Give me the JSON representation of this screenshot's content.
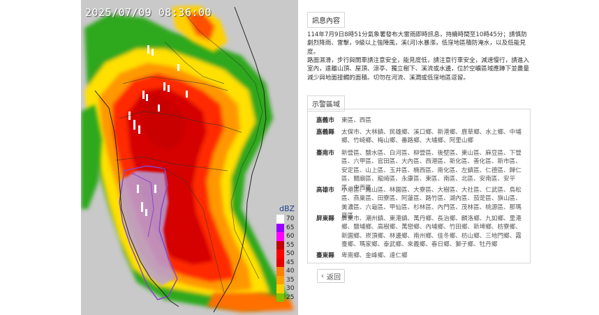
{
  "map": {
    "timestamp": "2025/07/09 08:36:00",
    "legend_title": "dBZ",
    "legend": [
      {
        "label": "70",
        "color": "#ffffff"
      },
      {
        "label": "65",
        "color": "#9900ff"
      },
      {
        "label": "60",
        "color": "#ff00ff"
      },
      {
        "label": "55",
        "color": "#c00000"
      },
      {
        "label": "50",
        "color": "#ff0000"
      },
      {
        "label": "45",
        "color": "#e60000"
      },
      {
        "label": "40",
        "color": "#ff7f00"
      },
      {
        "label": "35",
        "color": "#ffa000"
      },
      {
        "label": "30",
        "color": "#ffd000"
      },
      {
        "label": "25",
        "color": "#80c000"
      }
    ]
  },
  "notice": {
    "title": "訊息內容",
    "para1": "114年7月9日8時51分氣象署發布大雷雨即時訊息，持續時間至10時45分；請慎防劇烈降雨、雷擊，9級以上強陣風，溪(河)水暴漲，低窪地區積防淹水，以及低能見度。",
    "para2": "路面濕滑，步行與開車請注意安全，能見度低，請注意行車安全，減速慢行，請進入室內，遠離山頂、屋頂、涼亭、獨立樹下、溪流或水邊，位於空曠區域應蹲下並盡量減少與地面接觸的面積。切勿在河流、溪澗或低窪地區逗留。"
  },
  "regions": {
    "title": "示警區域",
    "items": [
      {
        "name": "嘉義市",
        "areas": "東區、西區"
      },
      {
        "name": "嘉義縣",
        "areas": "太保市、大林鎮、民雄鄉、溪口鄉、新港鄉、鹿草鄉、水上鄉、中埔鄉、竹崎鄉、梅山鄉、番路鄉、大埔鄉、阿里山鄉"
      },
      {
        "name": "臺南市",
        "areas": "新營區、鹽水區、白河區、柳營區、後壁區、東山區、麻豆區、下營區、六甲區、官田區、大內區、西港區、新化區、善化區、新市區、安定區、山上區、玉井區、楠西區、南化區、左鎮區、仁德區、歸仁區、關廟區、龍崎區、永康區、東區、南區、北區、安南區、安平區、中西區"
      },
      {
        "name": "高雄市",
        "areas": "小港區、鳳山區、林園區、大寮區、大樹區、大社區、仁武區、鳥松區、燕巢區、田寮區、阿蓮區、路竹區、湖內區、茄萣區、旗山區、美濃區、六龜區、甲仙區、杉林區、內門區、茂林區、桃源區、那瑪夏區"
      },
      {
        "name": "屏東縣",
        "areas": "屏東市、潮州鎮、東港鎮、萬丹鄉、長治鄉、麟洛鄉、九如鄉、里港鄉、鹽埔鄉、高樹鄉、萬巒鄉、內埔鄉、竹田鄉、新埤鄉、枋寮鄉、新園鄉、崁頂鄉、林邊鄉、南州鄉、佳冬鄉、枋山鄉、三地門鄉、霧臺鄉、瑪家鄉、泰武鄉、來義鄉、春日鄉、獅子鄉、牡丹鄉"
      },
      {
        "name": "臺東縣",
        "areas": "卑南鄉、金峰鄉、達仁鄉"
      }
    ]
  },
  "back_button": {
    "label": "返回",
    "icon": "chevron-left-icon"
  }
}
